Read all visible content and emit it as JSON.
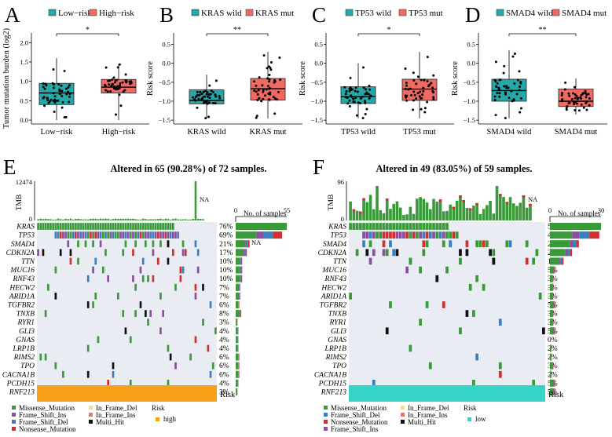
{
  "colors": {
    "low_risk": "#26a8a8",
    "high_risk": "#f06a63",
    "missense": "#3a9a3a",
    "frame_shift_ins": "#8a4fa0",
    "frame_shift_del": "#3a7fc0",
    "nonsense": "#d42f2f",
    "in_frame_del": "#f2dd8a",
    "in_frame_ins": "#e07a6a",
    "multi_hit": "#111111",
    "grid_bg": "#e9edf3",
    "risk_high": "#f7a01a",
    "risk_low": "#36d4c8"
  },
  "chart_data": [
    {
      "panel": "A",
      "type": "boxplot",
      "legend": [
        "Low−risk",
        "High−risk"
      ],
      "categories": [
        "Low−risk",
        "High−risk"
      ],
      "ylabel": "Tumor mutation burden (log2)",
      "yticks": [
        "0.0",
        "0.5",
        "1.0",
        "1.5",
        "2.0"
      ],
      "ylim": [
        -0.1,
        2.25
      ],
      "significance": "*",
      "boxes": [
        {
          "q1": 0.4,
          "median": 0.7,
          "q3": 0.95,
          "lo": 0.0,
          "hi": 1.6
        },
        {
          "q1": 0.7,
          "median": 0.85,
          "q3": 1.05,
          "lo": 0.0,
          "hi": 1.45
        }
      ]
    },
    {
      "panel": "B",
      "type": "boxplot",
      "legend": [
        "KRAS wild",
        "KRAS mut"
      ],
      "categories": [
        "KRAS wild",
        "KRAS mut"
      ],
      "ylabel": "Risk score",
      "yticks": [
        "−1.5",
        "−1.0",
        "−0.5",
        "0.0",
        "0.5"
      ],
      "ylim": [
        -1.6,
        0.8
      ],
      "significance": "**",
      "boxes": [
        {
          "q1": -1.07,
          "median": -0.98,
          "q3": -0.7,
          "lo": -1.45,
          "hi": -0.3
        },
        {
          "q1": -0.97,
          "median": -0.67,
          "q3": -0.4,
          "lo": -1.45,
          "hi": 0.3
        }
      ]
    },
    {
      "panel": "C",
      "type": "boxplot",
      "legend": [
        "TP53 wild",
        "TP53 mut"
      ],
      "categories": [
        "TP53 wild",
        "TP53 mut"
      ],
      "ylabel": "Risk score",
      "yticks": [
        "−1.5",
        "−1.0",
        "−0.5",
        "0.0",
        "0.5"
      ],
      "ylim": [
        -1.6,
        0.8
      ],
      "significance": "*",
      "boxes": [
        {
          "q1": -1.06,
          "median": -0.88,
          "q3": -0.62,
          "lo": -1.45,
          "hi": 0.0
        },
        {
          "q1": -0.98,
          "median": -0.68,
          "q3": -0.42,
          "lo": -1.45,
          "hi": 0.3
        }
      ]
    },
    {
      "panel": "D",
      "type": "boxplot",
      "legend": [
        "SMAD4 wild",
        "SMAD4 mut"
      ],
      "categories": [
        "SMAD4 wild",
        "SMAD4 mut"
      ],
      "ylabel": "Risk score",
      "yticks": [
        "−1.5",
        "−1.0",
        "−0.5",
        "0.0",
        "0.5"
      ],
      "ylim": [
        -1.6,
        0.8
      ],
      "significance": "**",
      "boxes": [
        {
          "q1": -1.0,
          "median": -0.72,
          "q3": -0.42,
          "lo": -1.45,
          "hi": 0.35
        },
        {
          "q1": -1.14,
          "median": -1.0,
          "q3": -0.68,
          "lo": -1.35,
          "hi": -0.4
        }
      ]
    },
    {
      "panel": "E",
      "type": "oncoplot",
      "title": "Altered in 65 (90.28%) of 72 samples.",
      "tmb_label": "TMB",
      "tmb_max": "12474",
      "tmb_zero": "0",
      "na_label": "NA",
      "samples_label": "No. of samples",
      "samples_axis": [
        "0",
        "55"
      ],
      "samples_max": 55,
      "n_samples": 72,
      "genes": [
        "KRAS",
        "TP53",
        "SMAD4",
        "CDKN2A",
        "TTN",
        "MUC16",
        "RNF43",
        "HECW2",
        "ARID1A",
        "TGFBR2",
        "TNXB",
        "RYR1",
        "GLI3",
        "GNAS",
        "LRP1B",
        "RIMS2",
        "TPO",
        "CACNA1B",
        "PCDH15",
        "RNF213"
      ],
      "percents": [
        "76%",
        "69%",
        "21%",
        "17%",
        "10%",
        "10%",
        "10%",
        "7%",
        "7%",
        "6%",
        "8%",
        "3%",
        "4%",
        "4%",
        "4%",
        "6%",
        "6%",
        "6%",
        "4%",
        "3%"
      ],
      "counts": [
        55,
        50,
        15,
        12,
        7,
        7,
        7,
        5,
        5,
        4,
        6,
        2,
        3,
        3,
        3,
        4,
        4,
        4,
        3,
        2
      ],
      "risk_label": "Risk"
    },
    {
      "panel": "F",
      "type": "oncoplot",
      "title": "Altered in 49 (83.05%) of 59 samples.",
      "tmb_label": "TMB",
      "tmb_max": "96",
      "tmb_zero": "0",
      "na_label": "NA",
      "samples_label": "No. of samples",
      "samples_axis": [
        "0",
        "30"
      ],
      "samples_max": 30,
      "n_samples": 59,
      "genes": [
        "KRAS",
        "TP53",
        "SMAD4",
        "CDKN2A",
        "TTN",
        "MUC16",
        "RNF43",
        "HECW2",
        "ARID1A",
        "TGFBR2",
        "TNXB",
        "RYR1",
        "GLI3",
        "GNAS",
        "LRP1B",
        "RIMS2",
        "TPO",
        "CACNA1B",
        "PCDH15",
        "RNF213"
      ],
      "percents": [
        "51%",
        "49%",
        "29%",
        "22%",
        "14%",
        "5%",
        "3%",
        "3%",
        "3%",
        "5%",
        "3%",
        "3%",
        "5%",
        "0%",
        "2%",
        "2%",
        "3%",
        "2%",
        "5%",
        "5%"
      ],
      "counts": [
        30,
        29,
        17,
        13,
        8,
        3,
        2,
        2,
        2,
        3,
        2,
        2,
        3,
        0,
        1,
        1,
        2,
        1,
        3,
        3
      ],
      "risk_label": "Risk"
    }
  ],
  "legend_E": {
    "items_col1": [
      "Missense_Mutation",
      "Frame_Shift_Ins",
      "Frame_Shift_Del",
      "Nonsense_Mutation"
    ],
    "items_col2": [
      "In_Frame_Del",
      "In_Frame_Ins",
      "Multi_Hit"
    ],
    "risk_title": "Risk",
    "risk_value": "high"
  },
  "legend_F": {
    "items_col1": [
      "Missense_Mutation",
      "Frame_Shift_Del",
      "Nonsense_Mutation",
      "Frame_Shift_Ins"
    ],
    "items_col2": [
      "In_Frame_Del",
      "In_Frame_Ins",
      "Multi_Hit"
    ],
    "risk_title": "Risk",
    "risk_value": "low"
  },
  "panel_letters": [
    "A",
    "B",
    "C",
    "D",
    "E",
    "F"
  ]
}
